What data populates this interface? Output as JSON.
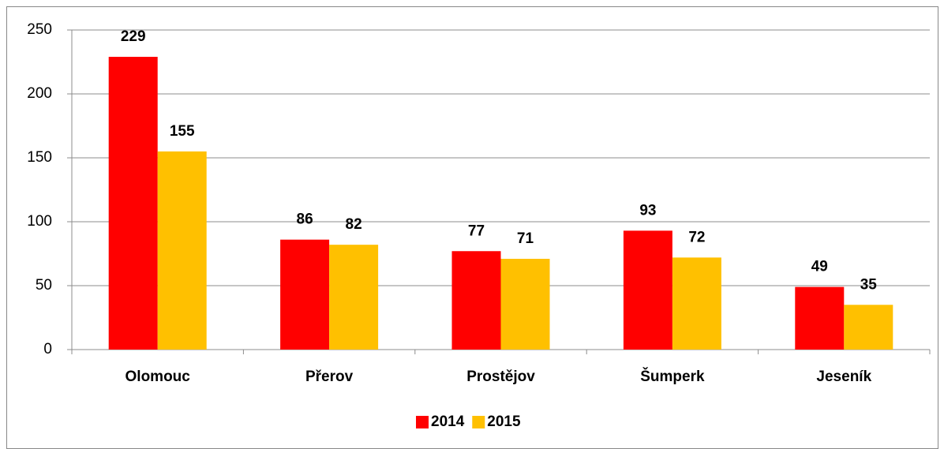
{
  "chart_data": {
    "type": "bar",
    "categories": [
      "Olomouc",
      "Přerov",
      "Prostějov",
      "Šumperk",
      "Jeseník"
    ],
    "series": [
      {
        "name": "2014",
        "color": "#ff0000",
        "values": [
          229,
          86,
          77,
          93,
          49
        ]
      },
      {
        "name": "2015",
        "color": "#ffc000",
        "values": [
          155,
          82,
          71,
          72,
          35
        ]
      }
    ],
    "ylim": [
      0,
      250
    ],
    "yticks": [
      0,
      50,
      100,
      150,
      200,
      250
    ],
    "grid": true,
    "legend": "bottom"
  }
}
